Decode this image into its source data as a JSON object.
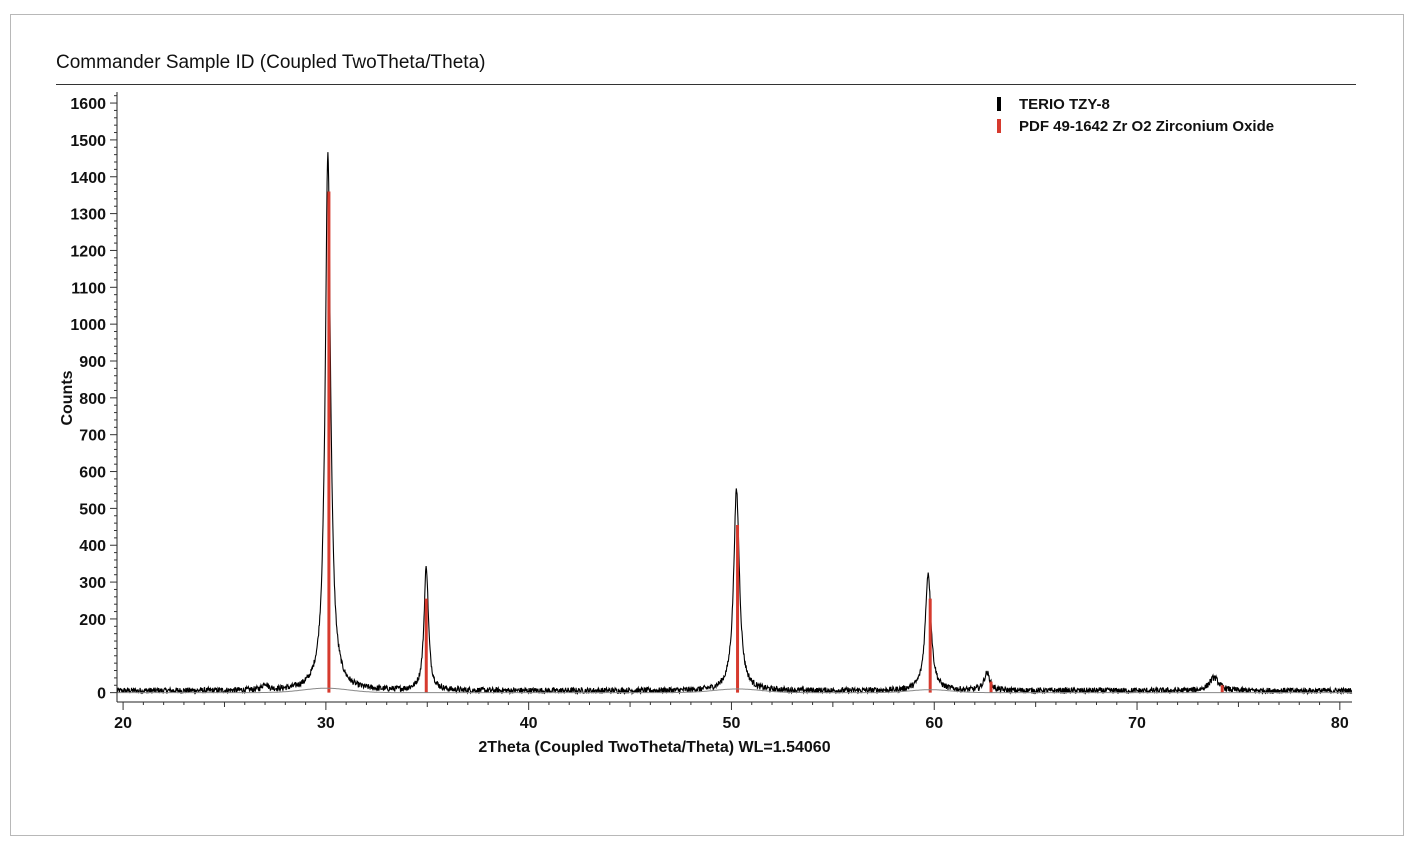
{
  "chart_data": {
    "type": "line",
    "title": "Commander Sample ID (Coupled TwoTheta/Theta)",
    "xlabel": "2Theta (Coupled TwoTheta/Theta) WL=1.54060",
    "ylabel": "Counts",
    "xlim": [
      19.7,
      80.6
    ],
    "ylim": [
      -20,
      1630
    ],
    "x_ticks": [
      20,
      30,
      40,
      50,
      60,
      70,
      80
    ],
    "y_ticks": [
      0,
      200,
      300,
      400,
      500,
      600,
      700,
      800,
      900,
      1000,
      1100,
      1200,
      1300,
      1400,
      1500,
      1600
    ],
    "y_tick_labels": [
      "0",
      "200",
      "300",
      "400",
      "500",
      "600",
      "700",
      "800",
      "900",
      "1000",
      "1100",
      "1200",
      "1300",
      "1400",
      "1500",
      "1600"
    ],
    "legend_position": "top-right",
    "series": [
      {
        "name": "TERIO TZY-8",
        "color": "#000000",
        "baseline": 5,
        "noise": 8,
        "peaks": [
          {
            "x": 27.0,
            "height": 18,
            "width": 0.15
          },
          {
            "x": 30.1,
            "height": 1460,
            "width": 0.16
          },
          {
            "x": 34.95,
            "height": 335,
            "width": 0.13
          },
          {
            "x": 50.25,
            "height": 545,
            "width": 0.17
          },
          {
            "x": 59.7,
            "height": 320,
            "width": 0.17
          },
          {
            "x": 62.6,
            "height": 48,
            "width": 0.17
          },
          {
            "x": 73.8,
            "height": 36,
            "width": 0.28
          }
        ]
      },
      {
        "name": "PDF 49-1642 Zr O2 Zirconium Oxide",
        "color": "#d63a2e",
        "type": "stick",
        "sticks": [
          {
            "x": 30.15,
            "y": 1360
          },
          {
            "x": 34.95,
            "y": 255
          },
          {
            "x": 50.3,
            "y": 455
          },
          {
            "x": 59.8,
            "y": 255
          },
          {
            "x": 62.8,
            "y": 30
          },
          {
            "x": 74.2,
            "y": 20
          }
        ]
      },
      {
        "name": "background",
        "color": "#888888",
        "type": "background",
        "humps": [
          {
            "x": 30.0,
            "height": 12,
            "width": 1.6
          },
          {
            "x": 50.3,
            "height": 10,
            "width": 1.6
          },
          {
            "x": 59.8,
            "height": 8,
            "width": 1.4
          }
        ]
      }
    ]
  }
}
